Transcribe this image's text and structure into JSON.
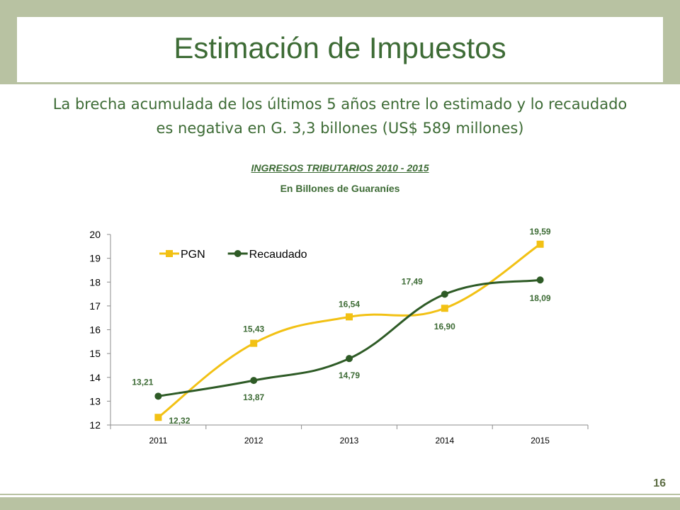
{
  "slide": {
    "title": "Estimación de Impuestos",
    "subtitle": "La brecha acumulada de los últimos 5 años entre lo estimado y lo recaudado es negativa en G. 3,3 billones (US$ 589 millones)",
    "page_number": "16"
  },
  "colors": {
    "band": "#b8c2a2",
    "text_green": "#3d6b35",
    "pgn": "#f2c114",
    "recaudado": "#2e5b26"
  },
  "chart_data": {
    "type": "line",
    "title": "INGRESOS TRIBUTARIOS 2010 - 2015",
    "subtitle": "En Billones de Guaraníes",
    "categories": [
      "2011",
      "2012",
      "2013",
      "2014",
      "2015"
    ],
    "ylim": [
      12,
      20
    ],
    "yticks": [
      "12",
      "13",
      "14",
      "15",
      "16",
      "17",
      "18",
      "19",
      "20"
    ],
    "legend_position": "top-left",
    "series": [
      {
        "name": "PGN",
        "values": [
          12.32,
          15.43,
          16.54,
          16.9,
          19.59
        ],
        "labels": [
          "12,32",
          "15,43",
          "16,54",
          "16,90",
          "19,59"
        ],
        "marker": "square",
        "color": "#f2c114"
      },
      {
        "name": "Recaudado",
        "values": [
          13.21,
          13.87,
          14.79,
          17.49,
          18.09
        ],
        "labels": [
          "13,21",
          "13,87",
          "14,79",
          "17,49",
          "18,09"
        ],
        "marker": "circle",
        "color": "#2e5b26"
      }
    ]
  }
}
